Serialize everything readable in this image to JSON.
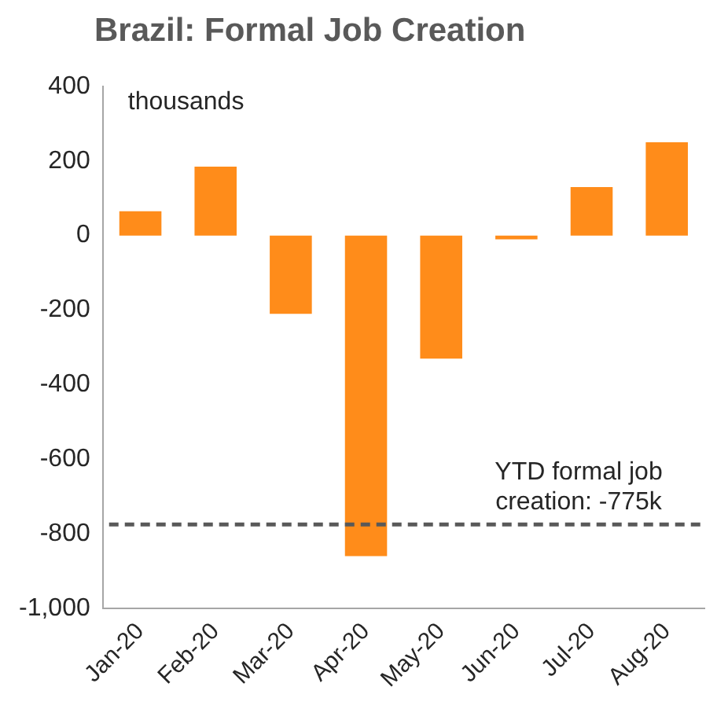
{
  "chart_data": {
    "type": "bar",
    "title": "Brazil: Formal Job Creation",
    "annotations": [
      "thousands"
    ],
    "categories": [
      "Jan-20",
      "Feb-20",
      "Mar-20",
      "Apr-20",
      "May-20",
      "Jun-20",
      "Jul-20",
      "Aug-20"
    ],
    "values": [
      65,
      185,
      -210,
      -860,
      -330,
      -10,
      130,
      250
    ],
    "color": "#ff8c1a",
    "ylim": [
      -1000,
      400
    ],
    "yticks": [
      {
        "value": -1000,
        "label": "-1,000"
      },
      -800,
      -600,
      -400,
      -200,
      0,
      200,
      400
    ],
    "ref_lines": [
      {
        "axis": "y",
        "value": -775,
        "label": "YTD formal job creation: -775k",
        "color": "#595959",
        "line_style": "dashed"
      }
    ],
    "grid": false,
    "legend": false
  }
}
